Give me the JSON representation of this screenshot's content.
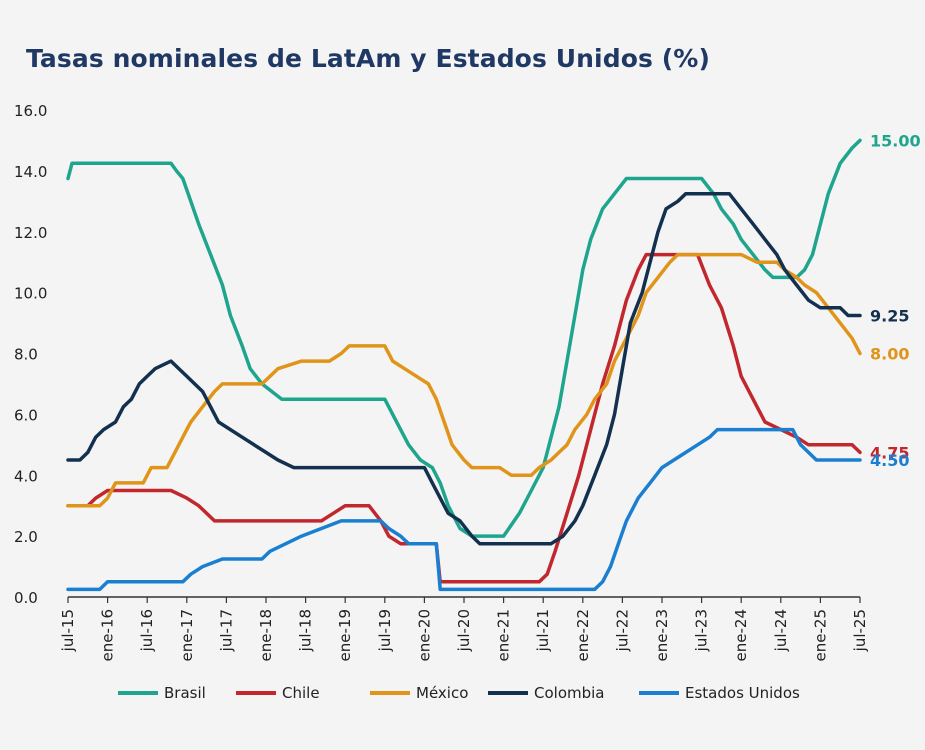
{
  "chart_data": {
    "type": "line",
    "title": "Tasas nominales de LatAm y Estados Unidos (%)",
    "xlabel": "",
    "ylabel": "",
    "ylim": [
      0,
      16
    ],
    "yticks": [
      "0.0",
      "2.0",
      "4.0",
      "6.0",
      "8.0",
      "10.0",
      "12.0",
      "14.0",
      "16.0"
    ],
    "xlim": [
      "2015-07",
      "2025-07"
    ],
    "xticks": [
      "jul-15",
      "ene-16",
      "jul-16",
      "ene-17",
      "jul-17",
      "ene-18",
      "jul-18",
      "ene-19",
      "jul-19",
      "ene-20",
      "jul-20",
      "ene-21",
      "jul-21",
      "ene-22",
      "jul-22",
      "ene-23",
      "jul-23",
      "ene-24",
      "jul-24",
      "ene-25",
      "jul-25"
    ],
    "grid": false,
    "legend": "bottom",
    "series": [
      {
        "name": "Brasil",
        "color": "#1fa58d",
        "end_label": "15.00",
        "points": [
          [
            2015.5,
            13.75
          ],
          [
            2015.55,
            14.25
          ],
          [
            2016.8,
            14.25
          ],
          [
            2016.87,
            14.0
          ],
          [
            2016.95,
            13.75
          ],
          [
            2017.05,
            13.0
          ],
          [
            2017.15,
            12.25
          ],
          [
            2017.3,
            11.25
          ],
          [
            2017.45,
            10.25
          ],
          [
            2017.55,
            9.25
          ],
          [
            2017.7,
            8.25
          ],
          [
            2017.8,
            7.5
          ],
          [
            2017.95,
            7.0
          ],
          [
            2018.2,
            6.5
          ],
          [
            2019.5,
            6.5
          ],
          [
            2019.6,
            6.0
          ],
          [
            2019.7,
            5.5
          ],
          [
            2019.8,
            5.0
          ],
          [
            2019.95,
            4.5
          ],
          [
            2020.1,
            4.25
          ],
          [
            2020.2,
            3.75
          ],
          [
            2020.3,
            3.0
          ],
          [
            2020.45,
            2.25
          ],
          [
            2020.6,
            2.0
          ],
          [
            2021.0,
            2.0
          ],
          [
            2021.2,
            2.75
          ],
          [
            2021.35,
            3.5
          ],
          [
            2021.5,
            4.25
          ],
          [
            2021.6,
            5.25
          ],
          [
            2021.7,
            6.25
          ],
          [
            2021.8,
            7.75
          ],
          [
            2021.9,
            9.25
          ],
          [
            2022.0,
            10.75
          ],
          [
            2022.1,
            11.75
          ],
          [
            2022.25,
            12.75
          ],
          [
            2022.4,
            13.25
          ],
          [
            2022.55,
            13.75
          ],
          [
            2023.5,
            13.75
          ],
          [
            2023.65,
            13.25
          ],
          [
            2023.75,
            12.75
          ],
          [
            2023.9,
            12.25
          ],
          [
            2024.0,
            11.75
          ],
          [
            2024.15,
            11.25
          ],
          [
            2024.3,
            10.75
          ],
          [
            2024.4,
            10.5
          ],
          [
            2024.7,
            10.5
          ],
          [
            2024.8,
            10.75
          ],
          [
            2024.9,
            11.25
          ],
          [
            2025.0,
            12.25
          ],
          [
            2025.1,
            13.25
          ],
          [
            2025.25,
            14.25
          ],
          [
            2025.4,
            14.75
          ],
          [
            2025.5,
            15.0
          ]
        ]
      },
      {
        "name": "Chile",
        "color": "#c1272d",
        "end_label": "4.75",
        "points": [
          [
            2015.5,
            3.0
          ],
          [
            2015.75,
            3.0
          ],
          [
            2015.85,
            3.25
          ],
          [
            2016.0,
            3.5
          ],
          [
            2016.8,
            3.5
          ],
          [
            2017.0,
            3.25
          ],
          [
            2017.15,
            3.0
          ],
          [
            2017.25,
            2.75
          ],
          [
            2017.35,
            2.5
          ],
          [
            2018.7,
            2.5
          ],
          [
            2018.85,
            2.75
          ],
          [
            2019.0,
            3.0
          ],
          [
            2019.3,
            3.0
          ],
          [
            2019.45,
            2.5
          ],
          [
            2019.55,
            2.0
          ],
          [
            2019.7,
            1.75
          ],
          [
            2020.15,
            1.75
          ],
          [
            2020.2,
            0.5
          ],
          [
            2021.0,
            0.5
          ],
          [
            2021.45,
            0.5
          ],
          [
            2021.55,
            0.75
          ],
          [
            2021.65,
            1.5
          ],
          [
            2021.8,
            2.75
          ],
          [
            2021.95,
            4.0
          ],
          [
            2022.1,
            5.5
          ],
          [
            2022.25,
            7.0
          ],
          [
            2022.4,
            8.25
          ],
          [
            2022.55,
            9.75
          ],
          [
            2022.7,
            10.75
          ],
          [
            2022.8,
            11.25
          ],
          [
            2023.45,
            11.25
          ],
          [
            2023.6,
            10.25
          ],
          [
            2023.75,
            9.5
          ],
          [
            2023.9,
            8.25
          ],
          [
            2024.0,
            7.25
          ],
          [
            2024.15,
            6.5
          ],
          [
            2024.3,
            5.75
          ],
          [
            2024.5,
            5.5
          ],
          [
            2024.7,
            5.25
          ],
          [
            2024.85,
            5.0
          ],
          [
            2025.4,
            5.0
          ],
          [
            2025.5,
            4.75
          ]
        ]
      },
      {
        "name": "México",
        "color": "#e0951a",
        "end_label": "8.00",
        "points": [
          [
            2015.5,
            3.0
          ],
          [
            2015.9,
            3.0
          ],
          [
            2016.0,
            3.25
          ],
          [
            2016.1,
            3.75
          ],
          [
            2016.45,
            3.75
          ],
          [
            2016.55,
            4.25
          ],
          [
            2016.75,
            4.25
          ],
          [
            2016.85,
            4.75
          ],
          [
            2016.95,
            5.25
          ],
          [
            2017.05,
            5.75
          ],
          [
            2017.2,
            6.25
          ],
          [
            2017.35,
            6.75
          ],
          [
            2017.45,
            7.0
          ],
          [
            2017.95,
            7.0
          ],
          [
            2018.05,
            7.25
          ],
          [
            2018.15,
            7.5
          ],
          [
            2018.45,
            7.75
          ],
          [
            2018.8,
            7.75
          ],
          [
            2018.95,
            8.0
          ],
          [
            2019.05,
            8.25
          ],
          [
            2019.5,
            8.25
          ],
          [
            2019.6,
            7.75
          ],
          [
            2019.75,
            7.5
          ],
          [
            2019.9,
            7.25
          ],
          [
            2020.05,
            7.0
          ],
          [
            2020.15,
            6.5
          ],
          [
            2020.25,
            5.75
          ],
          [
            2020.35,
            5.0
          ],
          [
            2020.5,
            4.5
          ],
          [
            2020.6,
            4.25
          ],
          [
            2020.95,
            4.25
          ],
          [
            2021.1,
            4.0
          ],
          [
            2021.35,
            4.0
          ],
          [
            2021.45,
            4.25
          ],
          [
            2021.6,
            4.5
          ],
          [
            2021.7,
            4.75
          ],
          [
            2021.8,
            5.0
          ],
          [
            2021.9,
            5.5
          ],
          [
            2022.05,
            6.0
          ],
          [
            2022.15,
            6.5
          ],
          [
            2022.3,
            7.0
          ],
          [
            2022.4,
            7.75
          ],
          [
            2022.55,
            8.5
          ],
          [
            2022.7,
            9.25
          ],
          [
            2022.8,
            10.0
          ],
          [
            2022.95,
            10.5
          ],
          [
            2023.1,
            11.0
          ],
          [
            2023.2,
            11.25
          ],
          [
            2024.0,
            11.25
          ],
          [
            2024.2,
            11.0
          ],
          [
            2024.45,
            11.0
          ],
          [
            2024.55,
            10.75
          ],
          [
            2024.7,
            10.5
          ],
          [
            2024.8,
            10.25
          ],
          [
            2024.95,
            10.0
          ],
          [
            2025.1,
            9.5
          ],
          [
            2025.25,
            9.0
          ],
          [
            2025.4,
            8.5
          ],
          [
            2025.5,
            8.0
          ]
        ]
      },
      {
        "name": "Colombia",
        "color": "#13304f",
        "end_label": "9.25",
        "points": [
          [
            2015.5,
            4.5
          ],
          [
            2015.65,
            4.5
          ],
          [
            2015.75,
            4.75
          ],
          [
            2015.85,
            5.25
          ],
          [
            2015.95,
            5.5
          ],
          [
            2016.1,
            5.75
          ],
          [
            2016.2,
            6.25
          ],
          [
            2016.3,
            6.5
          ],
          [
            2016.4,
            7.0
          ],
          [
            2016.5,
            7.25
          ],
          [
            2016.6,
            7.5
          ],
          [
            2016.8,
            7.75
          ],
          [
            2016.9,
            7.5
          ],
          [
            2017.0,
            7.25
          ],
          [
            2017.1,
            7.0
          ],
          [
            2017.2,
            6.75
          ],
          [
            2017.3,
            6.25
          ],
          [
            2017.4,
            5.75
          ],
          [
            2017.55,
            5.5
          ],
          [
            2017.7,
            5.25
          ],
          [
            2017.85,
            5.0
          ],
          [
            2018.0,
            4.75
          ],
          [
            2018.15,
            4.5
          ],
          [
            2018.35,
            4.25
          ],
          [
            2020.0,
            4.25
          ],
          [
            2020.1,
            3.75
          ],
          [
            2020.2,
            3.25
          ],
          [
            2020.3,
            2.75
          ],
          [
            2020.45,
            2.5
          ],
          [
            2020.6,
            2.0
          ],
          [
            2020.7,
            1.75
          ],
          [
            2021.6,
            1.75
          ],
          [
            2021.75,
            2.0
          ],
          [
            2021.9,
            2.5
          ],
          [
            2022.0,
            3.0
          ],
          [
            2022.15,
            4.0
          ],
          [
            2022.3,
            5.0
          ],
          [
            2022.4,
            6.0
          ],
          [
            2022.5,
            7.5
          ],
          [
            2022.6,
            9.0
          ],
          [
            2022.75,
            10.0
          ],
          [
            2022.85,
            11.0
          ],
          [
            2022.95,
            12.0
          ],
          [
            2023.05,
            12.75
          ],
          [
            2023.2,
            13.0
          ],
          [
            2023.3,
            13.25
          ],
          [
            2023.85,
            13.25
          ],
          [
            2024.0,
            12.75
          ],
          [
            2024.15,
            12.25
          ],
          [
            2024.3,
            11.75
          ],
          [
            2024.45,
            11.25
          ],
          [
            2024.55,
            10.75
          ],
          [
            2024.7,
            10.25
          ],
          [
            2024.85,
            9.75
          ],
          [
            2025.0,
            9.5
          ],
          [
            2025.25,
            9.5
          ],
          [
            2025.35,
            9.25
          ],
          [
            2025.5,
            9.25
          ]
        ]
      },
      {
        "name": "Estados Unidos",
        "color": "#1b7fd1",
        "end_label": "4.50",
        "points": [
          [
            2015.5,
            0.25
          ],
          [
            2015.9,
            0.25
          ],
          [
            2016.0,
            0.5
          ],
          [
            2016.95,
            0.5
          ],
          [
            2017.05,
            0.75
          ],
          [
            2017.2,
            1.0
          ],
          [
            2017.45,
            1.25
          ],
          [
            2017.95,
            1.25
          ],
          [
            2018.05,
            1.5
          ],
          [
            2018.25,
            1.75
          ],
          [
            2018.45,
            2.0
          ],
          [
            2018.7,
            2.25
          ],
          [
            2018.95,
            2.5
          ],
          [
            2019.45,
            2.5
          ],
          [
            2019.55,
            2.25
          ],
          [
            2019.7,
            2.0
          ],
          [
            2019.8,
            1.75
          ],
          [
            2020.15,
            1.75
          ],
          [
            2020.2,
            0.25
          ],
          [
            2022.15,
            0.25
          ],
          [
            2022.25,
            0.5
          ],
          [
            2022.35,
            1.0
          ],
          [
            2022.45,
            1.75
          ],
          [
            2022.55,
            2.5
          ],
          [
            2022.7,
            3.25
          ],
          [
            2022.85,
            3.75
          ],
          [
            2023.0,
            4.25
          ],
          [
            2023.15,
            4.5
          ],
          [
            2023.3,
            4.75
          ],
          [
            2023.45,
            5.0
          ],
          [
            2023.6,
            5.25
          ],
          [
            2023.7,
            5.5
          ],
          [
            2024.65,
            5.5
          ],
          [
            2024.75,
            5.0
          ],
          [
            2024.85,
            4.75
          ],
          [
            2024.95,
            4.5
          ],
          [
            2025.5,
            4.5
          ]
        ]
      }
    ]
  }
}
